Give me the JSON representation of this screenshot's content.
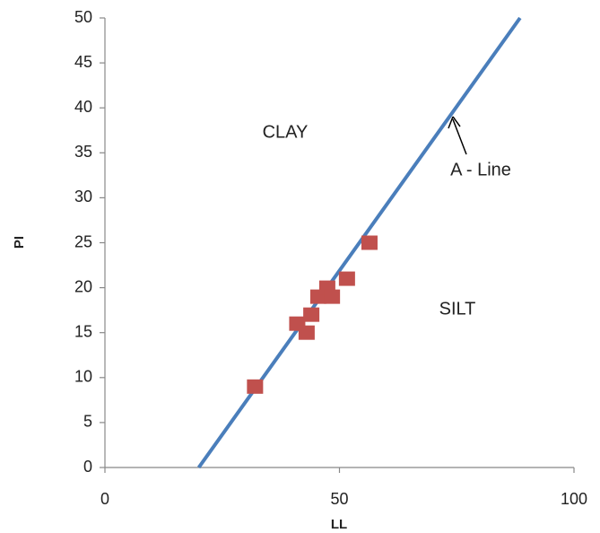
{
  "chart_data": {
    "type": "scatter",
    "x_label": "LL",
    "y_label": "PI",
    "xlim": [
      0,
      100
    ],
    "xticks": [
      0,
      50,
      100
    ],
    "ylim": [
      0,
      50
    ],
    "yticks": [
      0,
      5,
      10,
      15,
      20,
      25,
      30,
      35,
      40,
      45,
      50
    ],
    "annotations": [
      "CLAY",
      "SILT"
    ],
    "series": [
      {
        "name": "A - Line",
        "type": "line",
        "color": "#4a7ebb",
        "x": [
          20,
          88.5
        ],
        "values": [
          0,
          50
        ]
      },
      {
        "type": "scatter",
        "color": "#c0504d",
        "x": [
          32,
          41,
          43,
          44,
          45.5,
          47.4,
          48.4,
          51.6,
          56.4
        ],
        "values": [
          9,
          16,
          15,
          17,
          19,
          20,
          19,
          21,
          25
        ]
      }
    ]
  }
}
